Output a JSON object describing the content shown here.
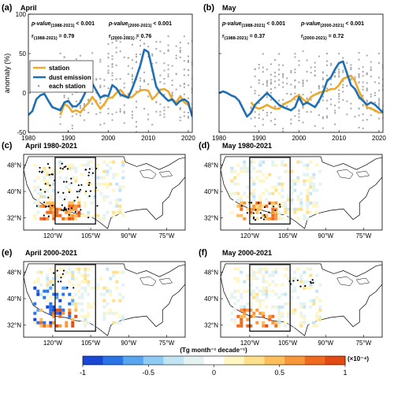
{
  "chart_data": [
    {
      "panel": "(a)",
      "title": "April",
      "type": "line",
      "ylabel": "anomaly (%)",
      "xlim": [
        1980,
        2021
      ],
      "ylim": [
        -50,
        100
      ],
      "xticks": [
        1980,
        1990,
        2000,
        2010,
        2020
      ],
      "yticks": [
        -50,
        0,
        50,
        100
      ],
      "annotations": {
        "p1_prefix": "p-value",
        "p1_sub": "(1988-2021)",
        "p1_val": " < 0.001",
        "p2_prefix": "p-value",
        "p2_sub": "(2000-2021)",
        "p2_val": " < 0.001",
        "r1_prefix": "r",
        "r1_sub": "(1988-2021)",
        "r1_val": " = 0.79",
        "r2_prefix": "r",
        "r2_sub": "(2000-2021)",
        "r2_val": " = 0.76"
      },
      "legend": {
        "placement": "left",
        "entries": [
          "station",
          "dust emission",
          "each station"
        ]
      },
      "series": [
        {
          "name": "station",
          "color": "#EBAA2E",
          "x": [
            1988,
            1989,
            1990,
            1991,
            1992,
            1993,
            1994,
            1995,
            1996,
            1997,
            1998,
            1999,
            2000,
            2001,
            2002,
            2003,
            2004,
            2005,
            2006,
            2007,
            2008,
            2009,
            2010,
            2011,
            2012,
            2013,
            2014,
            2015,
            2016,
            2017,
            2018,
            2019,
            2020,
            2021
          ],
          "values": [
            -28,
            -14,
            -17,
            -24,
            -22,
            -25,
            -18,
            -13,
            -5,
            -12,
            -20,
            -14,
            -6,
            -6,
            0,
            4,
            -2,
            -6,
            -5,
            0,
            3,
            4,
            3,
            -8,
            -3,
            4,
            5,
            2,
            -8,
            -12,
            -4,
            -12,
            -15,
            -25
          ]
        },
        {
          "name": "dust emission",
          "color": "#1F6FB4",
          "x": [
            1980,
            1981,
            1982,
            1983,
            1984,
            1985,
            1986,
            1987,
            1988,
            1989,
            1990,
            1991,
            1992,
            1993,
            1994,
            1995,
            1996,
            1997,
            1998,
            1999,
            2000,
            2001,
            2002,
            2003,
            2004,
            2005,
            2006,
            2007,
            2008,
            2009,
            2010,
            2011,
            2012,
            2013,
            2014,
            2015,
            2016,
            2017,
            2018,
            2019,
            2020,
            2021
          ],
          "values": [
            -28,
            -23,
            -8,
            -3,
            -1,
            -10,
            -18,
            -20,
            -22,
            -12,
            -10,
            -17,
            -17,
            -12,
            -2,
            10,
            12,
            3,
            -6,
            -3,
            -4,
            10,
            6,
            -2,
            -4,
            -6,
            6,
            20,
            35,
            55,
            52,
            30,
            8,
            0,
            -5,
            -10,
            -8,
            -15,
            -10,
            -8,
            -12,
            -30
          ]
        }
      ]
    },
    {
      "panel": "(b)",
      "title": "May",
      "type": "line",
      "xlim": [
        1980,
        2021
      ],
      "ylim": [
        -50,
        100
      ],
      "xticks": [
        1980,
        1990,
        2000,
        2010,
        2020
      ],
      "annotations": {
        "p1_prefix": "p-value",
        "p1_sub": "(1988-2021)",
        "p1_val": " < 0.001",
        "p2_prefix": "p-value",
        "p2_sub": "(2000-2021)",
        "p2_val": " < 0.001",
        "r1_prefix": "r",
        "r1_sub": "(1988-2021)",
        "r1_val": " = 0.37",
        "r2_prefix": "r",
        "r2_sub": "(2000-2021)",
        "r2_val": " = 0.72"
      },
      "series": [
        {
          "name": "station",
          "color": "#EBAA2E",
          "x": [
            1988,
            1989,
            1990,
            1991,
            1992,
            1993,
            1994,
            1995,
            1996,
            1997,
            1998,
            1999,
            2000,
            2001,
            2002,
            2003,
            2004,
            2005,
            2006,
            2007,
            2008,
            2009,
            2010,
            2011,
            2012,
            2013,
            2014,
            2015,
            2016,
            2017,
            2018,
            2019,
            2020,
            2021
          ],
          "values": [
            -12,
            -18,
            -20,
            -18,
            -15,
            -18,
            -20,
            -20,
            -15,
            -12,
            -10,
            -5,
            -3,
            -8,
            -12,
            -5,
            -2,
            0,
            2,
            3,
            5,
            5,
            10,
            18,
            20,
            22,
            15,
            2,
            -8,
            -18,
            -20,
            -22,
            -25,
            -25
          ]
        },
        {
          "name": "dust emission",
          "color": "#1F6FB4",
          "x": [
            1980,
            1981,
            1982,
            1983,
            1984,
            1985,
            1986,
            1987,
            1988,
            1989,
            1990,
            1991,
            1992,
            1993,
            1994,
            1995,
            1996,
            1997,
            1998,
            1999,
            2000,
            2001,
            2002,
            2003,
            2004,
            2005,
            2006,
            2007,
            2008,
            2009,
            2010,
            2011,
            2012,
            2013,
            2014,
            2015,
            2016,
            2017,
            2018,
            2019,
            2020,
            2021
          ],
          "values": [
            0,
            2,
            0,
            -3,
            -5,
            -10,
            -20,
            -30,
            -25,
            -15,
            -10,
            -5,
            0,
            -5,
            -10,
            -15,
            -18,
            -20,
            -22,
            -18,
            -5,
            -15,
            -12,
            -15,
            -18,
            -10,
            0,
            15,
            20,
            30,
            38,
            40,
            25,
            10,
            5,
            -5,
            -10,
            -15,
            -12,
            -15,
            -20,
            -25
          ]
        }
      ]
    },
    {
      "panel": "(c)",
      "title": "April 1980-2021",
      "type": "heatmap",
      "xticks": [
        "120°W",
        "105°W",
        "90°W",
        "75°W"
      ],
      "yticks": [
        "48°N",
        "40°N",
        "32°N"
      ],
      "seed": 3,
      "intensity": 1.0,
      "dots": "dense"
    },
    {
      "panel": "(d)",
      "title": "May 1980-2021",
      "type": "heatmap",
      "xticks": [
        "120°W",
        "105°W",
        "90°W",
        "75°W"
      ],
      "yticks": [
        "48°N",
        "40°N",
        "32°N"
      ],
      "seed": 7,
      "intensity": 0.8,
      "dots": "south"
    },
    {
      "panel": "(e)",
      "title": "April 2000-2021",
      "type": "heatmap",
      "xticks": [
        "120°W",
        "105°W",
        "90°W",
        "75°W"
      ],
      "yticks": [
        "48°N",
        "40°N",
        "32°N"
      ],
      "seed": 11,
      "intensity": 1.2,
      "dots": "sparse"
    },
    {
      "panel": "(f)",
      "title": "May 2000-2021",
      "type": "heatmap",
      "xticks": [
        "120°W",
        "105°W",
        "90°W",
        "75°W"
      ],
      "yticks": [
        "48°N",
        "40°N",
        "32°N"
      ],
      "seed": 19,
      "intensity": 0.9,
      "dots": "northeast"
    }
  ],
  "colorbar": {
    "label": "(Tg month⁻¹ decade⁻¹)",
    "exponent": "(×10⁻⁴)",
    "ticks": [
      "-1",
      "-0.5",
      "0",
      "0.5",
      "1"
    ],
    "colors": [
      "#1847D6",
      "#2A74E8",
      "#58A6F2",
      "#8FCAF4",
      "#C2E4F3",
      "#E4F3F1",
      "#FFFFFF",
      "#FFF6C4",
      "#FFE08A",
      "#FDBF5C",
      "#F8963A",
      "#EF6A1F",
      "#E24A12"
    ]
  }
}
